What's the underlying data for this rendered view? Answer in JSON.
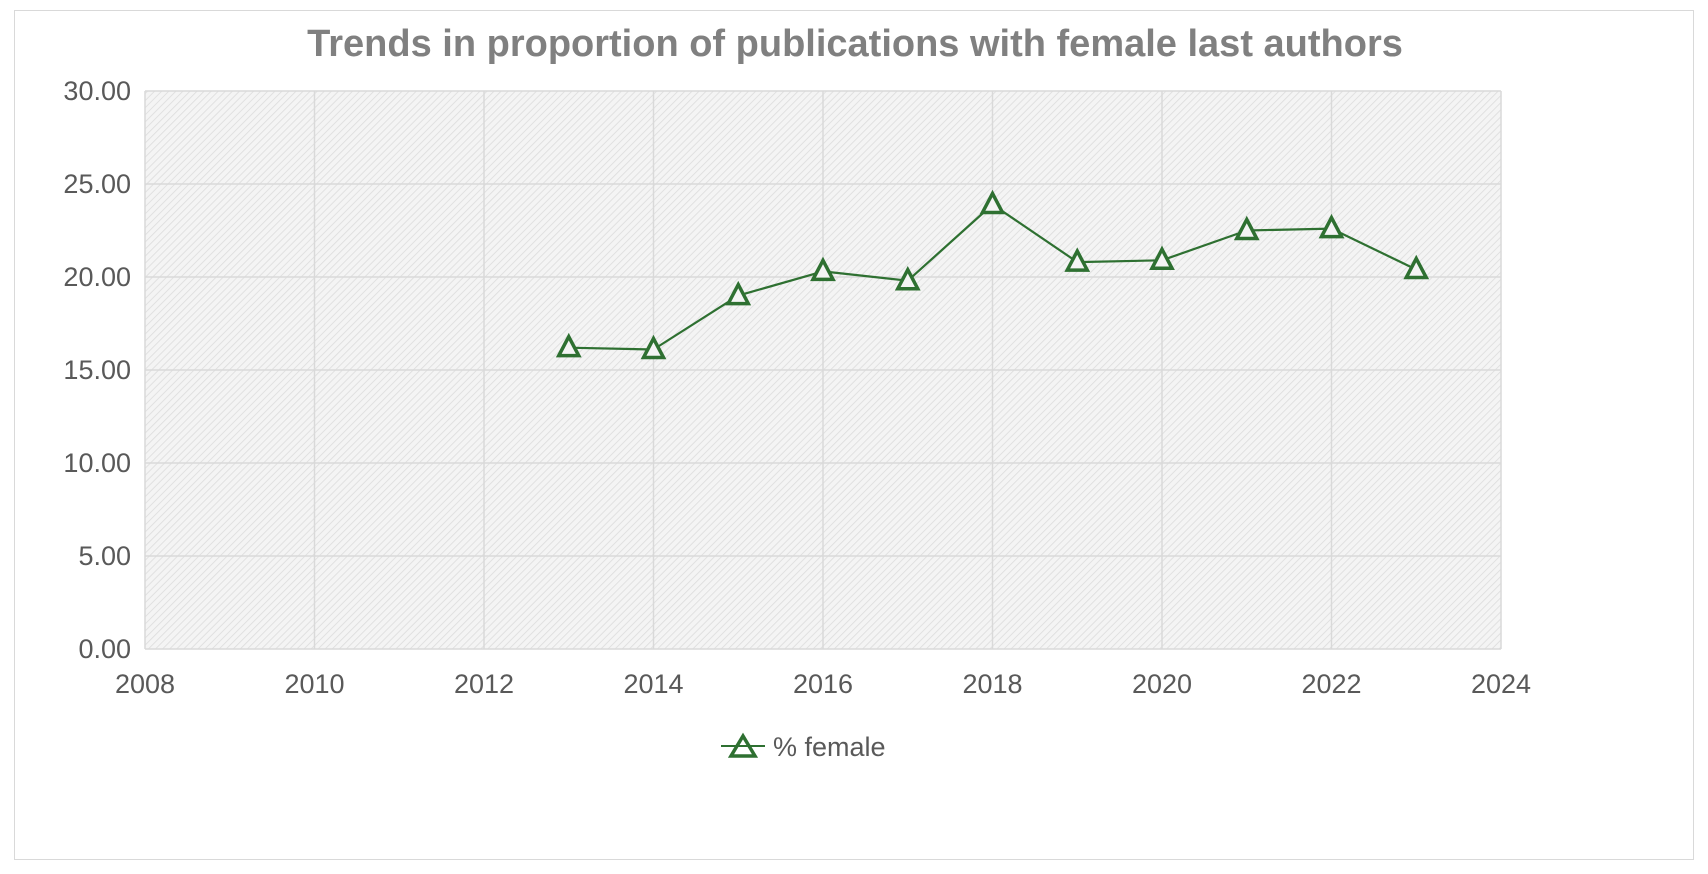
{
  "chart_data": {
    "type": "line",
    "title": "Trends in proportion of publications with female last authors",
    "xlabel": "",
    "ylabel": "",
    "xlim": [
      2008,
      2024
    ],
    "ylim": [
      0,
      30
    ],
    "x_ticks": [
      "2008",
      "2010",
      "2012",
      "2014",
      "2016",
      "2018",
      "2020",
      "2022",
      "2024"
    ],
    "y_ticks": [
      "0.00",
      "5.00",
      "10.00",
      "15.00",
      "20.00",
      "25.00",
      "30.00"
    ],
    "grid": true,
    "legend_position": "bottom",
    "series": [
      {
        "name": "% female",
        "color": "#2e7031",
        "marker": "open-triangle",
        "x": [
          2013,
          2014,
          2015,
          2016,
          2017,
          2018,
          2019,
          2020,
          2021,
          2022,
          2023
        ],
        "y": [
          16.2,
          16.1,
          19.0,
          20.3,
          19.8,
          23.9,
          20.8,
          20.9,
          22.5,
          22.6,
          20.4
        ]
      }
    ]
  }
}
